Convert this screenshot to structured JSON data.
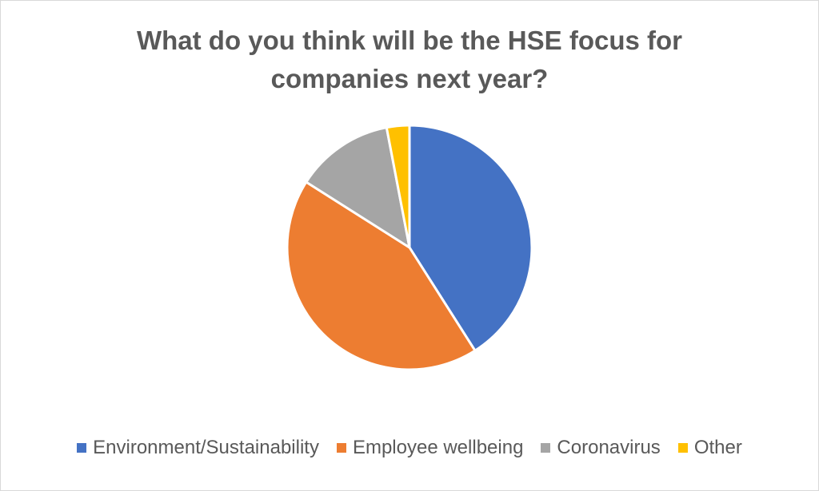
{
  "chart_data": {
    "type": "pie",
    "title": "What do you think will be the HSE focus for companies next year?",
    "categories": [
      "Environment/Sustainability",
      "Employee wellbeing",
      "Coronavirus",
      "Other"
    ],
    "values": [
      41,
      43,
      13,
      3
    ],
    "colors": [
      "#4472c4",
      "#ed7d31",
      "#a5a5a5",
      "#ffc000"
    ],
    "legend": "bottom"
  }
}
